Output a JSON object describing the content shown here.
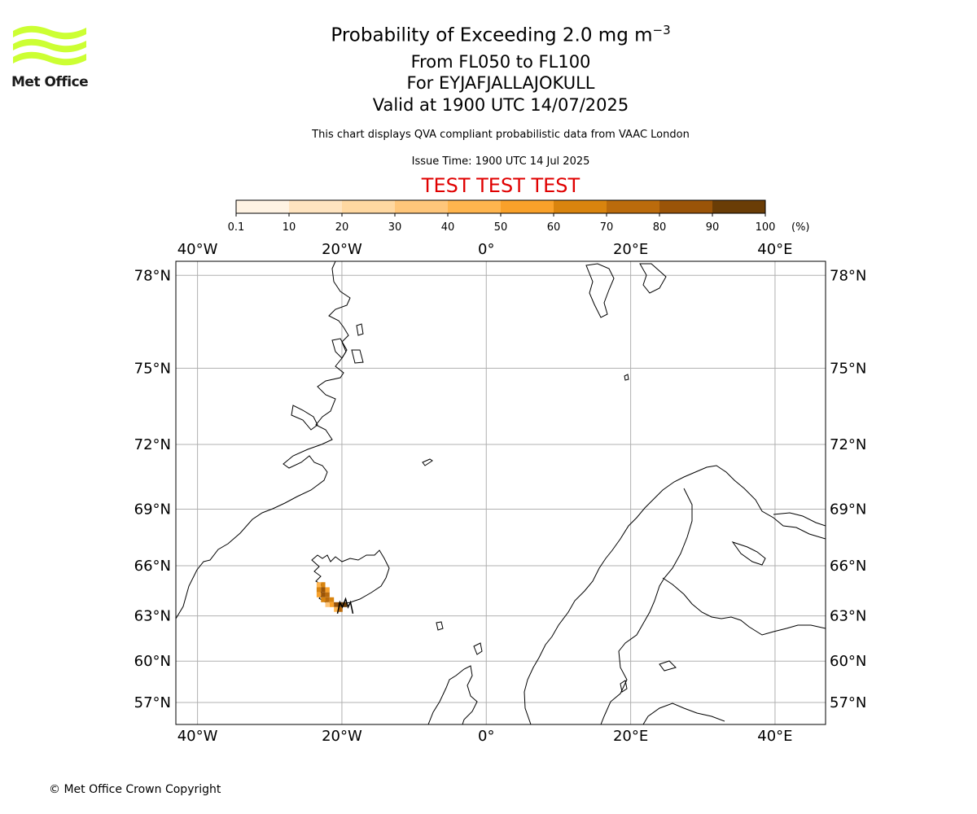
{
  "header": {
    "title_prefix": "Probability of Exceeding 2.0 mg m",
    "title_exponent": "−3",
    "level_range": "From FL050 to FL100",
    "volcano": "For EYJAFJALLAJOKULL",
    "valid_time": "Valid at 1900 UTC 14/07/2025",
    "description": "This chart displays QVA compliant probabilistic data from VAAC London",
    "issue_time": "Issue Time: 1900 UTC 14 Jul 2025",
    "test_banner": "TEST TEST TEST"
  },
  "logo": {
    "text": "Met Office",
    "color": "#ccff33"
  },
  "colorbar": {
    "ticks": [
      "0.1",
      "10",
      "20",
      "30",
      "40",
      "50",
      "60",
      "70",
      "80",
      "90",
      "100"
    ],
    "unit": "(%)",
    "colors": [
      "#fff3e3",
      "#ffe4c0",
      "#ffd8a1",
      "#ffc67a",
      "#ffb54e",
      "#f9a12a",
      "#d9840e",
      "#bb6b0c",
      "#9a5408",
      "#6a3d06"
    ]
  },
  "map": {
    "lon_labels": [
      "40°W",
      "20°W",
      "0°",
      "20°E",
      "40°E"
    ],
    "lat_labels": [
      "78°N",
      "75°N",
      "72°N",
      "69°N",
      "66°N",
      "63°N",
      "60°N",
      "57°N"
    ],
    "lon_values": [
      -40,
      -20,
      0,
      20,
      40
    ],
    "lat_values": [
      78,
      75,
      72,
      69,
      66,
      63,
      60,
      57
    ],
    "lon_range": [
      -43,
      47
    ],
    "lat_range": [
      55.3,
      78.4
    ],
    "grid": true,
    "ash_cells": [
      {
        "lon": -23.2,
        "lat": 64.9,
        "p": 40
      },
      {
        "lon": -22.6,
        "lat": 64.9,
        "p": 60
      },
      {
        "lon": -23.2,
        "lat": 64.6,
        "p": 60
      },
      {
        "lon": -22.6,
        "lat": 64.6,
        "p": 80
      },
      {
        "lon": -22.0,
        "lat": 64.6,
        "p": 50
      },
      {
        "lon": -23.2,
        "lat": 64.3,
        "p": 50
      },
      {
        "lon": -22.6,
        "lat": 64.3,
        "p": 80
      },
      {
        "lon": -22.0,
        "lat": 64.3,
        "p": 70
      },
      {
        "lon": -22.6,
        "lat": 64.0,
        "p": 60
      },
      {
        "lon": -22.0,
        "lat": 64.0,
        "p": 70
      },
      {
        "lon": -21.4,
        "lat": 64.0,
        "p": 60
      },
      {
        "lon": -21.4,
        "lat": 63.7,
        "p": 50
      },
      {
        "lon": -20.8,
        "lat": 63.7,
        "p": 80
      },
      {
        "lon": -20.2,
        "lat": 63.7,
        "p": 95
      },
      {
        "lon": -19.6,
        "lat": 63.7,
        "p": 95
      },
      {
        "lon": -20.8,
        "lat": 63.4,
        "p": 40
      },
      {
        "lon": -20.2,
        "lat": 63.4,
        "p": 70
      },
      {
        "lon": -22.0,
        "lat": 63.7,
        "p": 30
      }
    ]
  },
  "footer": {
    "copyright": "© Met Office Crown Copyright"
  }
}
